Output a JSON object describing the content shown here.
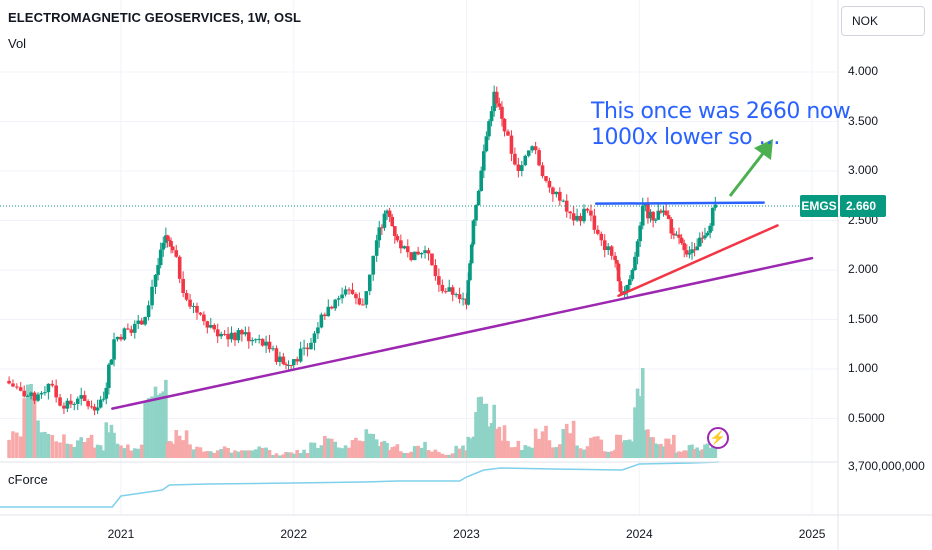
{
  "header": {
    "title": "ELECTROMAGNETIC GEOSERVICES, 1W, OSL",
    "volume_label": "Vol",
    "indicator_label": "cForce",
    "currency": "NOK"
  },
  "price_tag": {
    "symbol": "EMGS",
    "price": "2.660",
    "color": "#089981"
  },
  "annotation": {
    "text": "This once was 2660 now\n1000x lower so …",
    "color": "#2962ff"
  },
  "indicator_scale_label": "3,700,000,000",
  "colors": {
    "up": "#089981",
    "down": "#f23645",
    "vol_up": "#8fd3c7",
    "vol_down": "#f7a8a8",
    "trend_purple": "#9c27b0",
    "trend_red": "#f23645",
    "resistance": "#2962ff",
    "arrow": "#4caf50",
    "cforce_line": "#7fd0ea",
    "axis_text": "#131722"
  },
  "icons": {
    "alert": "lightning-bolt-icon"
  },
  "chart_data": {
    "type": "candlestick",
    "interval": "1W",
    "x_axis": {
      "tick_labels": [
        "2021",
        "2022",
        "2023",
        "2024",
        "2025"
      ],
      "range": [
        2020.3,
        2025.15
      ]
    },
    "y_axis": {
      "scale": "linear",
      "range": [
        0.2,
        4.5
      ],
      "tick_labels": [
        "0.5000",
        "1.000",
        "1.500",
        "2.000",
        "2.500",
        "3.000",
        "3.500",
        "4.000"
      ]
    },
    "last_price": 2.66,
    "series": [
      {
        "name": "price",
        "points": [
          [
            2020.33,
            0.88
          ],
          [
            2020.42,
            0.78
          ],
          [
            2020.5,
            0.68
          ],
          [
            2020.58,
            0.85
          ],
          [
            2020.67,
            0.6
          ],
          [
            2020.75,
            0.7
          ],
          [
            2020.83,
            0.62
          ],
          [
            2020.9,
            0.7
          ],
          [
            2020.96,
            1.3
          ],
          [
            2021.04,
            1.4
          ],
          [
            2021.12,
            1.45
          ],
          [
            2021.2,
            1.95
          ],
          [
            2021.26,
            2.35
          ],
          [
            2021.3,
            2.2
          ],
          [
            2021.38,
            1.7
          ],
          [
            2021.46,
            1.55
          ],
          [
            2021.54,
            1.4
          ],
          [
            2021.62,
            1.3
          ],
          [
            2021.7,
            1.35
          ],
          [
            2021.78,
            1.3
          ],
          [
            2021.86,
            1.2
          ],
          [
            2021.94,
            1.05
          ],
          [
            2022.0,
            1.1
          ],
          [
            2022.08,
            1.2
          ],
          [
            2022.16,
            1.55
          ],
          [
            2022.24,
            1.7
          ],
          [
            2022.32,
            1.8
          ],
          [
            2022.4,
            1.65
          ],
          [
            2022.48,
            2.3
          ],
          [
            2022.54,
            2.6
          ],
          [
            2022.6,
            2.3
          ],
          [
            2022.68,
            2.1
          ],
          [
            2022.76,
            2.2
          ],
          [
            2022.84,
            1.85
          ],
          [
            2022.92,
            1.75
          ],
          [
            2023.0,
            1.65
          ],
          [
            2023.04,
            2.5
          ],
          [
            2023.1,
            3.2
          ],
          [
            2023.16,
            3.8
          ],
          [
            2023.22,
            3.4
          ],
          [
            2023.3,
            3.0
          ],
          [
            2023.38,
            3.25
          ],
          [
            2023.46,
            2.9
          ],
          [
            2023.54,
            2.7
          ],
          [
            2023.62,
            2.5
          ],
          [
            2023.7,
            2.6
          ],
          [
            2023.78,
            2.3
          ],
          [
            2023.86,
            2.1
          ],
          [
            2023.9,
            1.75
          ],
          [
            2023.96,
            2.0
          ],
          [
            2024.02,
            2.65
          ],
          [
            2024.08,
            2.5
          ],
          [
            2024.14,
            2.6
          ],
          [
            2024.2,
            2.35
          ],
          [
            2024.26,
            2.2
          ],
          [
            2024.32,
            2.2
          ],
          [
            2024.38,
            2.35
          ],
          [
            2024.44,
            2.66
          ]
        ]
      },
      {
        "name": "volume",
        "relative_values": [
          0.25,
          0.3,
          0.8,
          0.4,
          0.3,
          0.2,
          0.25,
          0.15,
          0.45,
          0.2,
          0.15,
          0.9,
          0.9,
          0.2,
          0.35,
          0.15,
          0.1,
          0.15,
          0.1,
          0.1,
          0.15,
          0.05,
          0.08,
          0.1,
          0.2,
          0.3,
          0.15,
          0.25,
          0.35,
          0.2,
          0.15,
          0.1,
          0.2,
          0.1,
          0.05,
          0.15,
          0.3,
          0.8,
          0.6,
          0.35,
          0.2,
          0.15,
          0.35,
          0.2,
          0.4,
          0.15,
          0.25,
          0.1,
          0.25,
          0.25,
          1.0,
          0.35,
          0.2,
          0.25,
          0.1,
          0.15,
          0.15,
          0.2
        ]
      }
    ],
    "trendlines": [
      {
        "name": "",
        "color": "purple",
        "from": [
          2020.95,
          0.6
        ],
        "to": [
          2025.0,
          2.12
        ]
      },
      {
        "name": "",
        "color": "red",
        "from": [
          2023.88,
          1.74
        ],
        "to": [
          2024.8,
          2.45
        ]
      },
      {
        "name": "",
        "color": "blue",
        "from": [
          2023.75,
          2.67
        ],
        "to": [
          2024.72,
          2.68
        ]
      }
    ]
  }
}
